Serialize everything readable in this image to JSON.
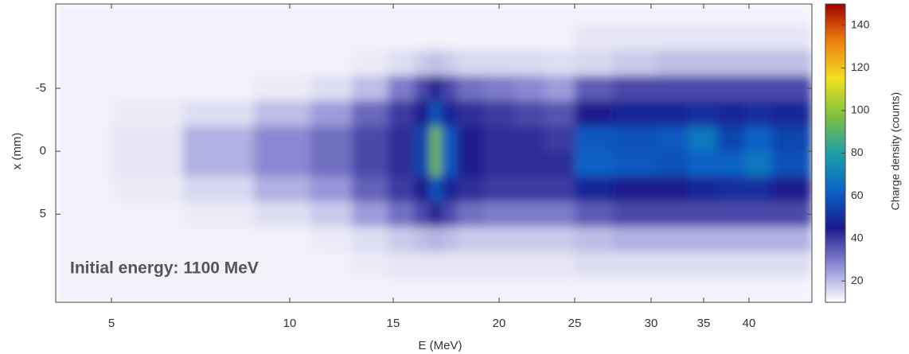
{
  "chart_data": {
    "type": "heatmap",
    "x_label": "E (MeV)",
    "y_label": "x (mm)",
    "colorbar_label": "Charge density (counts)",
    "annotation": "Initial energy: 1100 MeV",
    "x": [
      4,
      6,
      8,
      10,
      12,
      14,
      15.5,
      16.5,
      17,
      17.5,
      18.5,
      20,
      22,
      24,
      26,
      29,
      32,
      35,
      38,
      41,
      44
    ],
    "y": [
      -11,
      -9,
      -7,
      -5,
      -3,
      -1,
      1,
      3,
      5,
      7,
      9,
      11
    ],
    "z": [
      [
        12,
        12,
        12,
        12,
        12,
        12,
        12,
        12,
        12,
        12,
        12,
        12,
        12,
        12,
        12,
        12,
        12,
        12,
        12,
        12,
        12
      ],
      [
        12,
        12,
        12,
        12,
        12,
        12,
        12,
        12,
        12,
        12,
        12,
        12,
        12,
        12,
        14,
        14,
        14,
        14,
        14,
        14,
        14
      ],
      [
        12,
        12,
        12,
        12,
        12,
        13,
        15,
        18,
        20,
        18,
        16,
        16,
        16,
        15,
        16,
        18,
        20,
        20,
        20,
        20,
        20
      ],
      [
        12,
        12,
        12,
        13,
        15,
        20,
        30,
        38,
        45,
        38,
        32,
        30,
        28,
        25,
        35,
        38,
        38,
        38,
        38,
        38,
        38
      ],
      [
        12,
        13,
        15,
        20,
        25,
        33,
        40,
        45,
        60,
        48,
        42,
        40,
        38,
        36,
        45,
        48,
        48,
        50,
        48,
        50,
        48
      ],
      [
        12,
        14,
        22,
        28,
        32,
        38,
        42,
        55,
        95,
        60,
        45,
        42,
        42,
        40,
        60,
        58,
        60,
        68,
        55,
        62,
        55
      ],
      [
        12,
        14,
        22,
        28,
        32,
        38,
        42,
        55,
        95,
        60,
        45,
        42,
        42,
        42,
        62,
        60,
        58,
        62,
        62,
        68,
        58
      ],
      [
        12,
        13,
        16,
        22,
        26,
        34,
        40,
        45,
        60,
        48,
        42,
        40,
        40,
        40,
        48,
        45,
        45,
        48,
        50,
        50,
        45
      ],
      [
        12,
        12,
        13,
        15,
        18,
        25,
        32,
        38,
        45,
        38,
        32,
        30,
        30,
        30,
        35,
        38,
        38,
        38,
        38,
        38,
        38
      ],
      [
        12,
        12,
        12,
        12,
        13,
        15,
        18,
        20,
        22,
        20,
        18,
        18,
        18,
        18,
        20,
        22,
        22,
        22,
        22,
        22,
        22
      ],
      [
        12,
        12,
        12,
        12,
        12,
        13,
        14,
        14,
        14,
        14,
        14,
        14,
        14,
        14,
        15,
        15,
        15,
        15,
        15,
        15,
        15
      ],
      [
        12,
        12,
        12,
        12,
        12,
        12,
        12,
        12,
        12,
        12,
        12,
        12,
        12,
        12,
        12,
        12,
        12,
        12,
        12,
        12,
        12
      ]
    ],
    "xlim": [
      3.5,
      47
    ],
    "xticks": [
      5,
      10,
      15,
      20,
      25,
      30,
      35,
      40
    ],
    "ylim": [
      -11.7,
      12
    ],
    "yticks": [
      -5,
      0,
      5
    ],
    "y_reversed": true,
    "zlim": [
      10,
      150
    ],
    "zticks": [
      20,
      40,
      60,
      80,
      100,
      120,
      140
    ],
    "colormap": [
      "#ffffff",
      "#8c8cd4",
      "#1a1a8c",
      "#0a64c8",
      "#1ea0a8",
      "#80c040",
      "#f0e020",
      "#f08010",
      "#a00000"
    ]
  }
}
